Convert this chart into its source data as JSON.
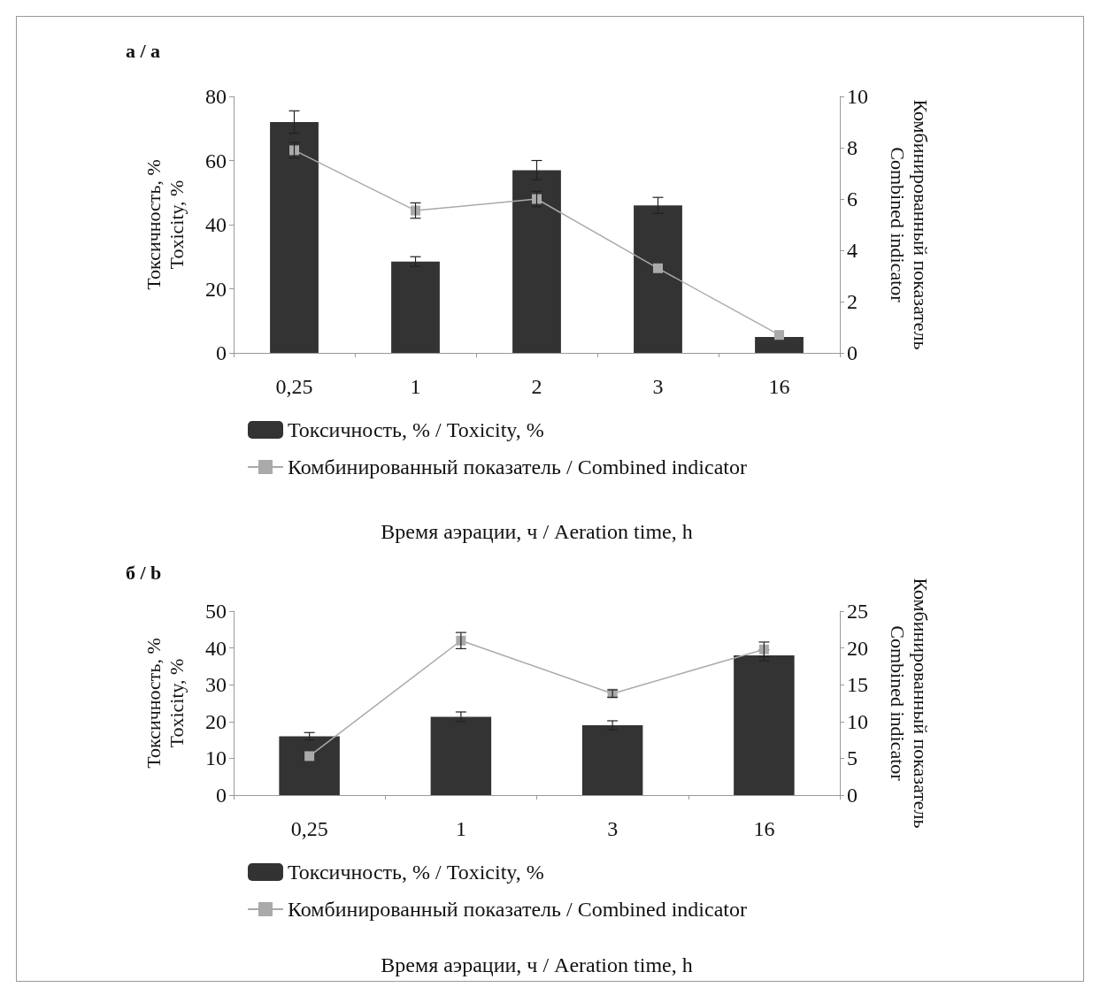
{
  "chart_data": [
    {
      "type": "bar",
      "title": "а / a",
      "xlabel": "Время аэрации, ч / Aeration time, h",
      "ylabel": "Токсичность, %\nToxicity, %",
      "y2label": "Комбинированный показатель\nCombined indicator",
      "categories": [
        "0,25",
        "1",
        "2",
        "3",
        "16"
      ],
      "series": [
        {
          "name": "Токсичность, % / Toxicity, %",
          "color": "#333333",
          "values": [
            72,
            28.5,
            57,
            46,
            5
          ],
          "errors": [
            3.5,
            1.5,
            3,
            2.5,
            null
          ]
        },
        {
          "name": "Комбинированный показатель / Combined indicator",
          "type": "line",
          "axis": "y2",
          "color": "#aaaaaa",
          "marker": "square",
          "values": [
            7.9,
            5.55,
            6.0,
            3.3,
            0.7
          ],
          "errors": [
            0.3,
            0.3,
            0.3,
            null,
            null
          ]
        }
      ],
      "ylim": [
        0,
        80
      ],
      "yticks": [
        0,
        20,
        40,
        60,
        80
      ],
      "y2lim": [
        0,
        10
      ],
      "y2ticks": [
        0,
        2,
        4,
        6,
        8,
        10
      ],
      "legend": "bottom",
      "grid": false
    },
    {
      "type": "bar",
      "title": "б / b",
      "xlabel": "Время аэрации, ч / Aeration time, h",
      "ylabel": "Токсичность, %\nToxicity, %",
      "y2label": "Комбинированный показатель\nCombined indicator",
      "categories": [
        "0,25",
        "1",
        "3",
        "16"
      ],
      "series": [
        {
          "name": "Токсичность, % / Toxicity, %",
          "color": "#333333",
          "values": [
            16,
            21.3,
            19,
            38
          ],
          "errors": [
            1,
            1.3,
            1.2,
            1.5
          ]
        },
        {
          "name": "Комбинированный показатель / Combined indicator",
          "type": "line",
          "axis": "y2",
          "color": "#aaaaaa",
          "marker": "square",
          "values": [
            5.3,
            21,
            13.8,
            19.8
          ],
          "errors": [
            null,
            1.1,
            0.5,
            1
          ]
        }
      ],
      "ylim": [
        0,
        50
      ],
      "yticks": [
        0,
        10,
        20,
        30,
        40,
        50
      ],
      "y2lim": [
        0,
        25
      ],
      "y2ticks": [
        0,
        5,
        10,
        15,
        20,
        25
      ],
      "legend": "bottom",
      "grid": false
    }
  ]
}
